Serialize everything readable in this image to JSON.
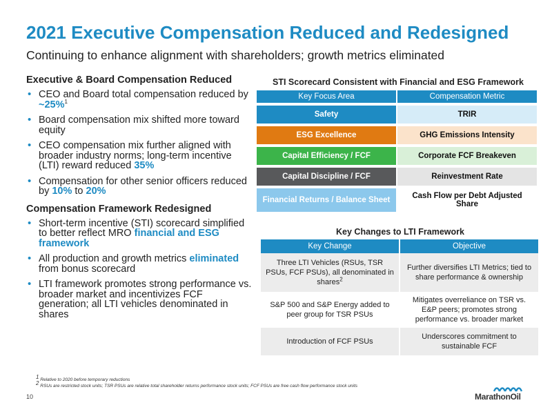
{
  "header": {
    "title": "2021 Executive Compensation Reduced and Redesigned",
    "subtitle": "Continuing to enhance alignment with shareholders; growth metrics eliminated"
  },
  "left": {
    "section1": {
      "heading": "Executive & Board Compensation Reduced",
      "b1": {
        "text": "CEO and Board total compensation reduced by ",
        "hl": "~25%",
        "sup": "1"
      },
      "b2": {
        "text": "Board compensation mix shifted more toward equity"
      },
      "b3": {
        "text": "CEO compensation mix further aligned with broader industry norms; long-term incentive (LTI) reward reduced ",
        "hl": "35%"
      },
      "b4": {
        "text": "Compensation for other senior officers reduced by ",
        "hl1": "10%",
        "mid": " to ",
        "hl2": "20%"
      }
    },
    "section2": {
      "heading": "Compensation Framework Redesigned",
      "b1": {
        "text": "Short-term incentive (STI) scorecard simplified to better reflect MRO ",
        "hl": "financial and ESG framework"
      },
      "b2": {
        "text1": "All production and growth metrics ",
        "hl": "eliminated",
        "text2": " from bonus scorecard"
      },
      "b3": {
        "text": "LTI framework promotes strong performance vs. broader market and incentivizes FCF generation; all LTI vehicles denominated in shares"
      }
    }
  },
  "sti": {
    "title": "STI Scorecard Consistent with Financial and ESG Framework",
    "headers": [
      "Key Focus Area",
      "Compensation Metric"
    ],
    "rows": [
      {
        "area": "Safety",
        "metric": "TRIR",
        "area_color": "#1e8bc3",
        "metric_color": "#d6ecf8"
      },
      {
        "area": "ESG Excellence",
        "metric": "GHG Emissions Intensity",
        "area_color": "#e07a12",
        "metric_color": "#fbe3cb"
      },
      {
        "area": "Capital Efficiency / FCF",
        "metric": "Corporate FCF Breakeven",
        "area_color": "#3cb44a",
        "metric_color": "#d9f0d8"
      },
      {
        "area": "Capital Discipline / FCF",
        "metric": "Reinvestment Rate",
        "area_color": "#58595b",
        "metric_color": "#e4e4e4"
      },
      {
        "area": "Financial Returns / Balance Sheet",
        "metric": "Cash Flow per Debt Adjusted Share",
        "area_color": "#8cc8ec",
        "metric_color": "#ffffff"
      }
    ]
  },
  "lti": {
    "title": "Key Changes to LTI Framework",
    "headers": [
      "Key Change",
      "Objective"
    ],
    "rows": [
      {
        "change": "Three LTI Vehicles (RSUs, TSR PSUs, FCF PSUs), all denominated in shares",
        "change_sup": "2",
        "objective": "Further diversifies LTI Metrics; tied to share performance & ownership"
      },
      {
        "change": "S&P 500 and S&P Energy added to peer group for TSR PSUs",
        "objective": "Mitigates overreliance on TSR vs. E&P peers; promotes strong performance vs. broader market"
      },
      {
        "change": "Introduction of FCF PSUs",
        "objective": "Underscores commitment to sustainable FCF"
      }
    ]
  },
  "footnotes": {
    "f1": {
      "mark": "1",
      "text": "Relative to 2020 before temporary reductions"
    },
    "f2": {
      "mark": "2",
      "text": "RSUs are restricted stock units; TSR PSUs are relative total shareholder returns performance stock units; FCF PSUs are free cash flow performance stock units"
    }
  },
  "footer": {
    "page_number": "10",
    "logo_text": "MarathonOil",
    "logo_icon": "marathon-wave-logo-icon",
    "accent": "#1e8bc3"
  }
}
